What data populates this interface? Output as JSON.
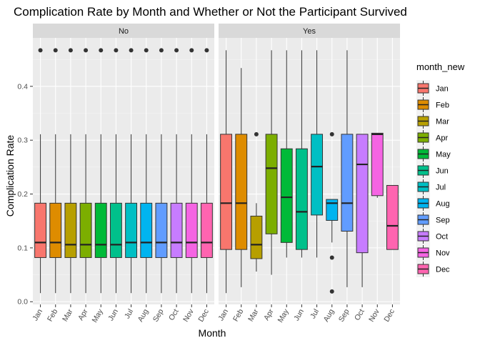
{
  "chart_data": {
    "type": "boxplot",
    "title": "Complication Rate by Month and Whether or Not the Participant Survived",
    "xlabel": "Month",
    "ylabel": "Complication Rate",
    "ylim": [
      -0.005,
      0.49
    ],
    "yticks": [
      0.0,
      0.1,
      0.2,
      0.3,
      0.4
    ],
    "ytick_labels": [
      "0.0",
      "0.1",
      "0.2",
      "0.3",
      "0.4"
    ],
    "categories": [
      "Jan",
      "Feb",
      "Mar",
      "Apr",
      "May",
      "Jun",
      "Jul",
      "Aug",
      "Sep",
      "Oct",
      "Nov",
      "Dec"
    ],
    "grid": true,
    "legend": {
      "title": "month_new",
      "placement": "right",
      "entries": [
        "Jan",
        "Feb",
        "Mar",
        "Apr",
        "May",
        "Jun",
        "Jul",
        "Aug",
        "Sep",
        "Oct",
        "Nov",
        "Dec"
      ]
    },
    "colors": [
      "#F8766D",
      "#DE8C00",
      "#B79F00",
      "#7CAE00",
      "#00BA38",
      "#00C08B",
      "#00BFC4",
      "#00B4F0",
      "#619CFF",
      "#C77CFF",
      "#F564E3",
      "#FF64B0"
    ],
    "panels": [
      {
        "label": "No",
        "boxes": [
          {
            "min": 0.016,
            "q1": 0.082,
            "median": 0.11,
            "q3": 0.183,
            "max": 0.311,
            "outliers": [
              0.467
            ]
          },
          {
            "min": 0.016,
            "q1": 0.082,
            "median": 0.11,
            "q3": 0.183,
            "max": 0.311,
            "outliers": [
              0.467
            ]
          },
          {
            "min": 0.016,
            "q1": 0.082,
            "median": 0.106,
            "q3": 0.183,
            "max": 0.311,
            "outliers": [
              0.467
            ]
          },
          {
            "min": 0.016,
            "q1": 0.082,
            "median": 0.106,
            "q3": 0.183,
            "max": 0.311,
            "outliers": [
              0.467
            ]
          },
          {
            "min": 0.016,
            "q1": 0.082,
            "median": 0.106,
            "q3": 0.183,
            "max": 0.311,
            "outliers": [
              0.467
            ]
          },
          {
            "min": 0.016,
            "q1": 0.082,
            "median": 0.106,
            "q3": 0.183,
            "max": 0.311,
            "outliers": [
              0.467
            ]
          },
          {
            "min": 0.016,
            "q1": 0.082,
            "median": 0.11,
            "q3": 0.183,
            "max": 0.311,
            "outliers": [
              0.467
            ]
          },
          {
            "min": 0.016,
            "q1": 0.082,
            "median": 0.11,
            "q3": 0.183,
            "max": 0.311,
            "outliers": [
              0.467
            ]
          },
          {
            "min": 0.016,
            "q1": 0.082,
            "median": 0.11,
            "q3": 0.183,
            "max": 0.311,
            "outliers": [
              0.467
            ]
          },
          {
            "min": 0.016,
            "q1": 0.082,
            "median": 0.11,
            "q3": 0.183,
            "max": 0.311,
            "outliers": [
              0.467
            ]
          },
          {
            "min": 0.016,
            "q1": 0.082,
            "median": 0.11,
            "q3": 0.183,
            "max": 0.311,
            "outliers": [
              0.467
            ]
          },
          {
            "min": 0.016,
            "q1": 0.082,
            "median": 0.11,
            "q3": 0.183,
            "max": 0.311,
            "outliers": [
              0.467
            ]
          }
        ]
      },
      {
        "label": "Yes",
        "boxes": [
          {
            "min": 0.016,
            "q1": 0.097,
            "median": 0.183,
            "q3": 0.311,
            "max": 0.467,
            "outliers": []
          },
          {
            "min": 0.027,
            "q1": 0.097,
            "median": 0.183,
            "q3": 0.311,
            "max": 0.434,
            "outliers": []
          },
          {
            "min": 0.056,
            "q1": 0.08,
            "median": 0.106,
            "q3": 0.159,
            "max": 0.183,
            "outliers": [
              0.311
            ]
          },
          {
            "min": 0.05,
            "q1": 0.126,
            "median": 0.248,
            "q3": 0.311,
            "max": 0.467,
            "outliers": []
          },
          {
            "min": 0.082,
            "q1": 0.11,
            "median": 0.194,
            "q3": 0.284,
            "max": 0.467,
            "outliers": []
          },
          {
            "min": 0.082,
            "q1": 0.097,
            "median": 0.167,
            "q3": 0.284,
            "max": 0.467,
            "outliers": []
          },
          {
            "min": 0.082,
            "q1": 0.161,
            "median": 0.251,
            "q3": 0.311,
            "max": 0.467,
            "outliers": []
          },
          {
            "min": 0.11,
            "q1": 0.151,
            "median": 0.183,
            "q3": 0.19,
            "max": 0.19,
            "outliers": [
              0.311,
              0.082,
              0.019
            ]
          },
          {
            "min": 0.027,
            "q1": 0.131,
            "median": 0.183,
            "q3": 0.311,
            "max": 0.467,
            "outliers": []
          },
          {
            "min": 0.027,
            "q1": 0.091,
            "median": 0.255,
            "q3": 0.311,
            "max": 0.311,
            "outliers": []
          },
          {
            "min": 0.193,
            "q1": 0.197,
            "median": 0.311,
            "q3": 0.313,
            "max": 0.313,
            "outliers": []
          },
          {
            "min": 0.097,
            "q1": 0.097,
            "median": 0.141,
            "q3": 0.216,
            "max": 0.216,
            "outliers": []
          }
        ]
      }
    ]
  }
}
